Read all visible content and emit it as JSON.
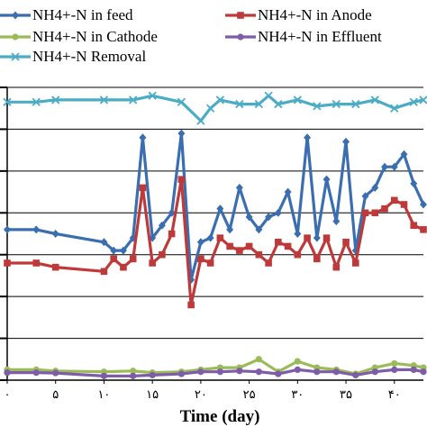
{
  "chart_data": {
    "type": "line",
    "xlabel": "Time (day)",
    "ylabel": "",
    "xlim": [
      0,
      43
    ],
    "ylim": [
      0,
      7
    ],
    "grid": true,
    "legend_position": "top",
    "x_tick_labels": [
      "۰",
      "۵",
      "۱۰",
      "۱۵",
      "۲۰",
      "۲۵",
      "۳۰",
      "۳۵",
      "۴۰"
    ],
    "x_ticks": [
      0,
      5,
      10,
      15,
      20,
      25,
      30,
      35,
      40
    ],
    "series": [
      {
        "name": "NH4+-N in feed",
        "color": "#3a6eb0",
        "marker": "diamond",
        "x": [
          0,
          3,
          5,
          10,
          11,
          12,
          13,
          14,
          15,
          16,
          17,
          18,
          19,
          20,
          21,
          22,
          23,
          24,
          25,
          26,
          27,
          28,
          29,
          30,
          31,
          32,
          33,
          34,
          35,
          36,
          37,
          38,
          39,
          40,
          41,
          42,
          43
        ],
        "y": [
          3.6,
          3.6,
          3.5,
          3.3,
          3.1,
          3.1,
          3.4,
          5.8,
          3.4,
          3.7,
          4.0,
          5.9,
          2.4,
          3.3,
          3.4,
          4.1,
          3.6,
          4.6,
          3.9,
          3.6,
          3.9,
          4.0,
          4.5,
          3.5,
          5.8,
          3.4,
          4.8,
          3.8,
          5.7,
          3.1,
          4.4,
          4.6,
          5.1,
          5.1,
          5.4,
          4.7,
          4.2
        ]
      },
      {
        "name": "NH4+-N in Anode",
        "color": "#be3a3a",
        "marker": "square",
        "x": [
          0,
          3,
          5,
          10,
          11,
          12,
          13,
          14,
          15,
          16,
          17,
          18,
          19,
          20,
          21,
          22,
          23,
          24,
          25,
          26,
          27,
          28,
          29,
          30,
          31,
          32,
          33,
          34,
          35,
          36,
          37,
          38,
          39,
          40,
          41,
          42,
          43
        ],
        "y": [
          2.8,
          2.8,
          2.7,
          2.6,
          2.9,
          2.7,
          2.9,
          4.6,
          2.8,
          3.0,
          3.5,
          4.8,
          1.8,
          2.9,
          2.8,
          3.4,
          3.2,
          3.1,
          3.2,
          3.0,
          2.8,
          3.3,
          3.2,
          3.0,
          3.4,
          2.9,
          3.4,
          2.7,
          3.3,
          2.8,
          4.0,
          4.0,
          4.1,
          4.3,
          4.2,
          3.7,
          3.6
        ]
      },
      {
        "name": "NH4+-N in Cathode",
        "color": "#9bbb59",
        "marker": "circle",
        "x": [
          0,
          3,
          5,
          10,
          13,
          15,
          18,
          20,
          22,
          24,
          26,
          28,
          30,
          32,
          34,
          36,
          38,
          40,
          42,
          43
        ],
        "y": [
          0.25,
          0.25,
          0.22,
          0.2,
          0.22,
          0.18,
          0.2,
          0.25,
          0.3,
          0.3,
          0.5,
          0.2,
          0.45,
          0.3,
          0.25,
          0.15,
          0.3,
          0.4,
          0.35,
          0.3
        ]
      },
      {
        "name": "NH4+-N in Effluent",
        "color": "#7e5ca8",
        "marker": "circle",
        "x": [
          0,
          3,
          5,
          10,
          13,
          15,
          18,
          20,
          22,
          24,
          26,
          28,
          30,
          32,
          34,
          36,
          38,
          40,
          42,
          43
        ],
        "y": [
          0.18,
          0.18,
          0.17,
          0.1,
          0.1,
          0.12,
          0.15,
          0.2,
          0.2,
          0.22,
          0.2,
          0.15,
          0.25,
          0.2,
          0.2,
          0.12,
          0.2,
          0.25,
          0.25,
          0.2
        ]
      },
      {
        "name": "NH4+-N Removal",
        "color": "#4bacc6",
        "marker": "x",
        "x": [
          0,
          3,
          5,
          10,
          13,
          15,
          18,
          20,
          21,
          22,
          24,
          26,
          27,
          28,
          30,
          32,
          34,
          36,
          38,
          40,
          42,
          43
        ],
        "y": [
          6.65,
          6.65,
          6.7,
          6.7,
          6.7,
          6.8,
          6.65,
          6.2,
          6.5,
          6.7,
          6.6,
          6.6,
          6.8,
          6.6,
          6.7,
          6.55,
          6.6,
          6.6,
          6.7,
          6.5,
          6.65,
          6.7
        ]
      }
    ]
  }
}
